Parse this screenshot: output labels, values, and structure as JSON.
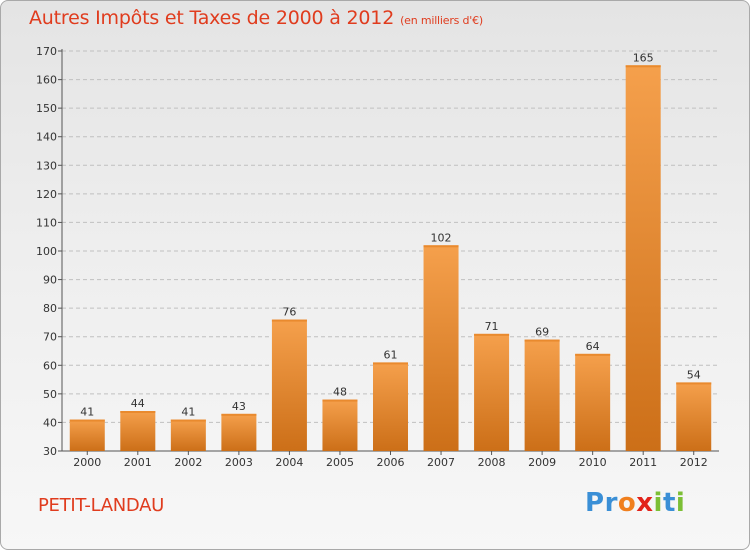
{
  "header": {
    "title": "Autres Impôts et Taxes de 2000 à 2012",
    "subtitle": "(en milliers d'€)"
  },
  "footer": {
    "place": "PETIT-LANDAU",
    "logo_letters": [
      {
        "ch": "P",
        "color": "#3a8fd6"
      },
      {
        "ch": "r",
        "color": "#3a8fd6"
      },
      {
        "ch": "o",
        "color": "#f07f1e"
      },
      {
        "ch": "x",
        "color": "#e2231a"
      },
      {
        "ch": "i",
        "color": "#7cbf35"
      },
      {
        "ch": "t",
        "color": "#3a8fd6"
      },
      {
        "ch": "i",
        "color": "#7cbf35"
      }
    ]
  },
  "colors": {
    "title": "#e03c1e",
    "bar_light": "#f5a04c",
    "bar_dark": "#cc6f18",
    "grid": "#c0c0c0"
  },
  "chart_data": {
    "type": "bar",
    "title": "Autres Impôts et Taxes de 2000 à 2012",
    "subtitle": "(en milliers d'€)",
    "categories": [
      "2000",
      "2001",
      "2002",
      "2003",
      "2004",
      "2005",
      "2006",
      "2007",
      "2008",
      "2009",
      "2010",
      "2011",
      "2012"
    ],
    "values": [
      41,
      44,
      41,
      43,
      76,
      48,
      61,
      102,
      71,
      69,
      64,
      165,
      54
    ],
    "ylim": [
      30,
      170
    ],
    "yticks": [
      30,
      40,
      50,
      60,
      70,
      80,
      90,
      100,
      110,
      120,
      130,
      140,
      150,
      160,
      170
    ],
    "grid": true,
    "data_labels": true
  }
}
